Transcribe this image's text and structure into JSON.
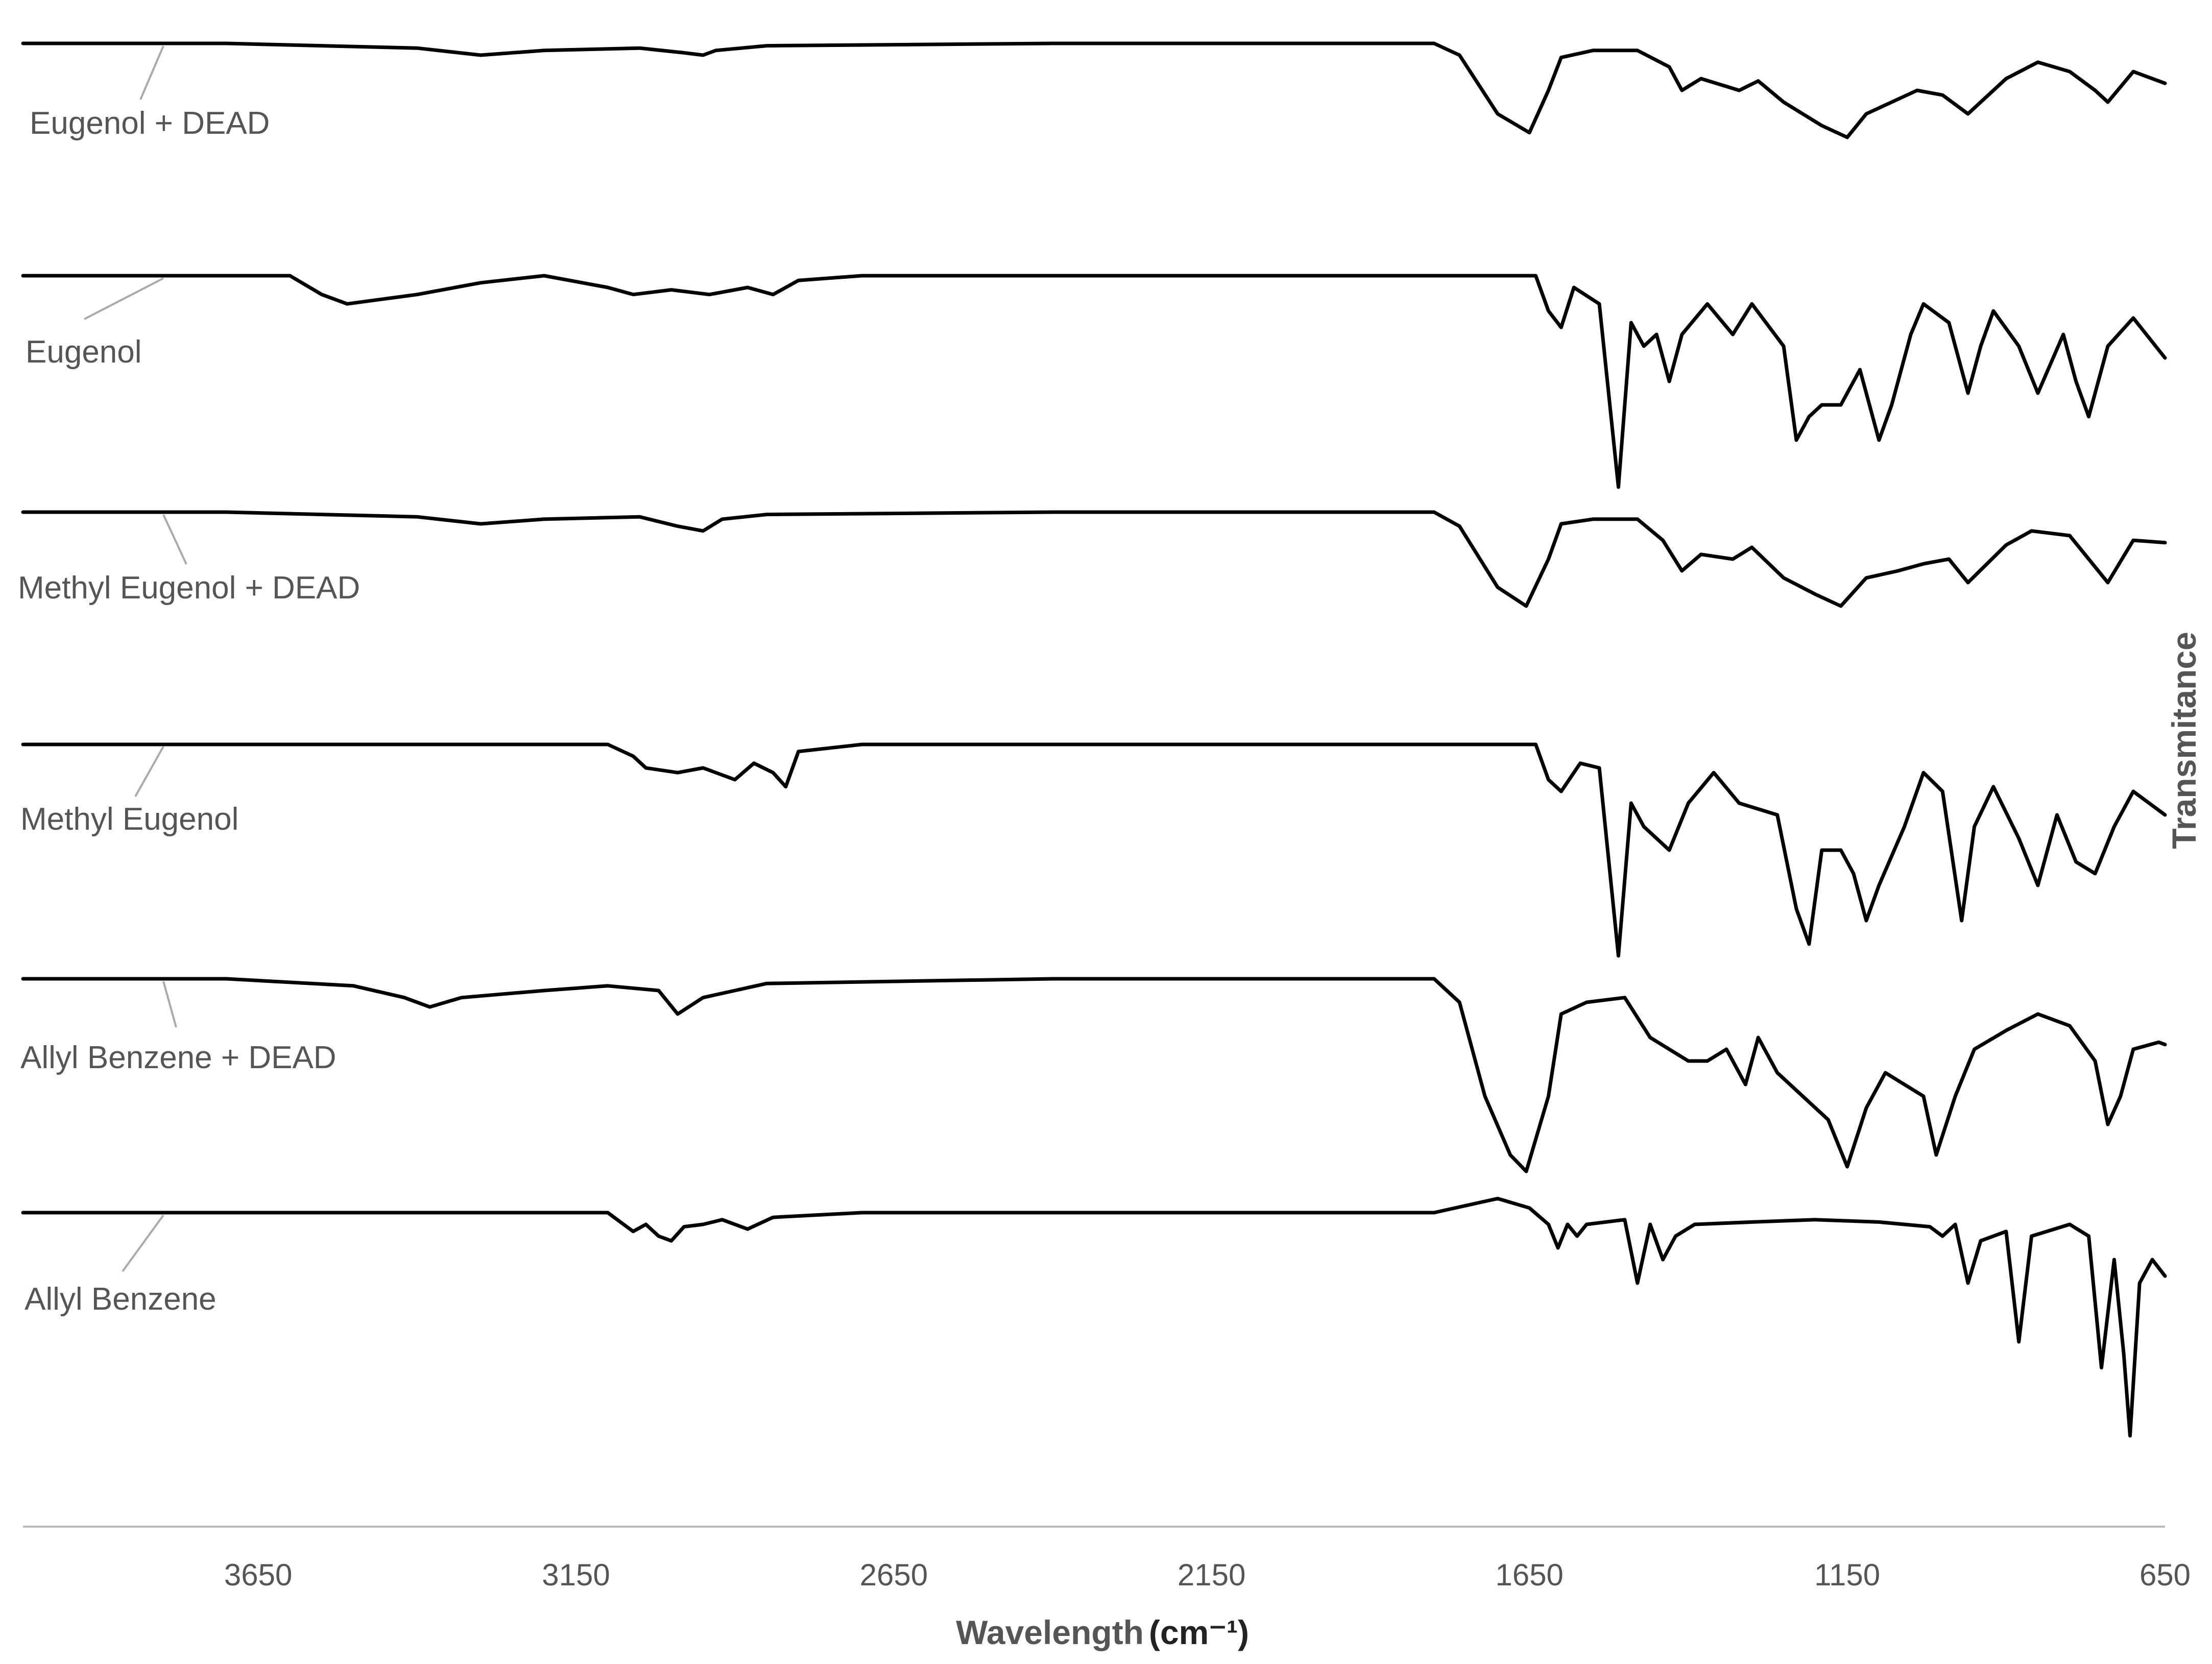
{
  "chart_data": {
    "type": "line",
    "title": "",
    "xlabel": "Wavelength",
    "xlabel_unit": "(cm⁻¹)",
    "ylabel": "Transmitance",
    "xlim": [
      4020,
      650
    ],
    "x_reversed": true,
    "grid": false,
    "legend": "none",
    "x_ticks": [
      {
        "value": 3650,
        "label": "3650"
      },
      {
        "value": 3150,
        "label": "3150"
      },
      {
        "value": 2650,
        "label": "2650"
      },
      {
        "value": 2150,
        "label": "2150"
      },
      {
        "value": 1650,
        "label": "1650"
      },
      {
        "value": 1150,
        "label": "1150"
      },
      {
        "value": 650,
        "label": "650"
      }
    ],
    "series": [
      {
        "name": "Eugenol + DEAD",
        "points": [
          [
            4020,
            0
          ],
          [
            3700,
            0
          ],
          [
            3400,
            -0.02
          ],
          [
            3300,
            -0.05
          ],
          [
            3200,
            -0.03
          ],
          [
            3050,
            -0.02
          ],
          [
            2980,
            -0.04
          ],
          [
            2950,
            -0.05
          ],
          [
            2930,
            -0.03
          ],
          [
            2850,
            -0.01
          ],
          [
            2400,
            0
          ],
          [
            1800,
            0
          ],
          [
            1760,
            -0.05
          ],
          [
            1700,
            -0.3
          ],
          [
            1650,
            -0.38
          ],
          [
            1620,
            -0.2
          ],
          [
            1600,
            -0.06
          ],
          [
            1550,
            -0.03
          ],
          [
            1480,
            -0.03
          ],
          [
            1430,
            -0.1
          ],
          [
            1410,
            -0.2
          ],
          [
            1380,
            -0.15
          ],
          [
            1320,
            -0.2
          ],
          [
            1290,
            -0.16
          ],
          [
            1250,
            -0.25
          ],
          [
            1190,
            -0.35
          ],
          [
            1150,
            -0.4
          ],
          [
            1120,
            -0.3
          ],
          [
            1080,
            -0.25
          ],
          [
            1040,
            -0.2
          ],
          [
            1000,
            -0.22
          ],
          [
            960,
            -0.3
          ],
          [
            900,
            -0.15
          ],
          [
            850,
            -0.08
          ],
          [
            800,
            -0.12
          ],
          [
            760,
            -0.2
          ],
          [
            740,
            -0.25
          ],
          [
            700,
            -0.12
          ],
          [
            650,
            -0.17
          ]
        ]
      },
      {
        "name": "Eugenol",
        "points": [
          [
            4020,
            0
          ],
          [
            3600,
            0
          ],
          [
            3550,
            -0.08
          ],
          [
            3510,
            -0.12
          ],
          [
            3400,
            -0.08
          ],
          [
            3300,
            -0.03
          ],
          [
            3200,
            0
          ],
          [
            3100,
            -0.05
          ],
          [
            3060,
            -0.08
          ],
          [
            3000,
            -0.06
          ],
          [
            2940,
            -0.08
          ],
          [
            2880,
            -0.05
          ],
          [
            2840,
            -0.08
          ],
          [
            2800,
            -0.02
          ],
          [
            2700,
            0
          ],
          [
            2000,
            0
          ],
          [
            1640,
            0
          ],
          [
            1620,
            -0.15
          ],
          [
            1600,
            -0.22
          ],
          [
            1580,
            -0.05
          ],
          [
            1540,
            -0.12
          ],
          [
            1510,
            -0.9
          ],
          [
            1490,
            -0.2
          ],
          [
            1470,
            -0.3
          ],
          [
            1450,
            -0.25
          ],
          [
            1430,
            -0.45
          ],
          [
            1410,
            -0.25
          ],
          [
            1370,
            -0.12
          ],
          [
            1330,
            -0.25
          ],
          [
            1300,
            -0.12
          ],
          [
            1250,
            -0.3
          ],
          [
            1230,
            -0.7
          ],
          [
            1210,
            -0.6
          ],
          [
            1190,
            -0.55
          ],
          [
            1160,
            -0.55
          ],
          [
            1130,
            -0.4
          ],
          [
            1100,
            -0.7
          ],
          [
            1080,
            -0.55
          ],
          [
            1050,
            -0.25
          ],
          [
            1030,
            -0.12
          ],
          [
            990,
            -0.2
          ],
          [
            960,
            -0.5
          ],
          [
            940,
            -0.3
          ],
          [
            920,
            -0.15
          ],
          [
            880,
            -0.3
          ],
          [
            850,
            -0.5
          ],
          [
            810,
            -0.25
          ],
          [
            790,
            -0.45
          ],
          [
            770,
            -0.6
          ],
          [
            740,
            -0.3
          ],
          [
            700,
            -0.18
          ],
          [
            650,
            -0.35
          ]
        ]
      },
      {
        "name": "Methyl Eugenol + DEAD",
        "points": [
          [
            4020,
            0
          ],
          [
            3700,
            0
          ],
          [
            3400,
            -0.02
          ],
          [
            3300,
            -0.05
          ],
          [
            3200,
            -0.03
          ],
          [
            3050,
            -0.02
          ],
          [
            2990,
            -0.06
          ],
          [
            2950,
            -0.08
          ],
          [
            2920,
            -0.03
          ],
          [
            2850,
            -0.01
          ],
          [
            2400,
            0
          ],
          [
            1800,
            0
          ],
          [
            1760,
            -0.06
          ],
          [
            1700,
            -0.32
          ],
          [
            1655,
            -0.4
          ],
          [
            1620,
            -0.2
          ],
          [
            1600,
            -0.05
          ],
          [
            1550,
            -0.03
          ],
          [
            1480,
            -0.03
          ],
          [
            1440,
            -0.12
          ],
          [
            1410,
            -0.25
          ],
          [
            1380,
            -0.18
          ],
          [
            1330,
            -0.2
          ],
          [
            1300,
            -0.15
          ],
          [
            1250,
            -0.28
          ],
          [
            1200,
            -0.35
          ],
          [
            1160,
            -0.4
          ],
          [
            1120,
            -0.28
          ],
          [
            1070,
            -0.25
          ],
          [
            1030,
            -0.22
          ],
          [
            990,
            -0.2
          ],
          [
            960,
            -0.3
          ],
          [
            900,
            -0.14
          ],
          [
            860,
            -0.08
          ],
          [
            800,
            -0.1
          ],
          [
            770,
            -0.2
          ],
          [
            740,
            -0.3
          ],
          [
            700,
            -0.12
          ],
          [
            650,
            -0.13
          ]
        ]
      },
      {
        "name": "Methyl Eugenol",
        "points": [
          [
            4020,
            0
          ],
          [
            3100,
            0
          ],
          [
            3060,
            -0.05
          ],
          [
            3040,
            -0.1
          ],
          [
            2990,
            -0.12
          ],
          [
            2950,
            -0.1
          ],
          [
            2900,
            -0.15
          ],
          [
            2870,
            -0.08
          ],
          [
            2840,
            -0.12
          ],
          [
            2820,
            -0.18
          ],
          [
            2800,
            -0.03
          ],
          [
            2700,
            0
          ],
          [
            2000,
            0
          ],
          [
            1640,
            0
          ],
          [
            1620,
            -0.15
          ],
          [
            1600,
            -0.2
          ],
          [
            1570,
            -0.08
          ],
          [
            1540,
            -0.1
          ],
          [
            1510,
            -0.9
          ],
          [
            1490,
            -0.25
          ],
          [
            1470,
            -0.35
          ],
          [
            1430,
            -0.45
          ],
          [
            1400,
            -0.25
          ],
          [
            1360,
            -0.12
          ],
          [
            1320,
            -0.25
          ],
          [
            1260,
            -0.3
          ],
          [
            1230,
            -0.7
          ],
          [
            1210,
            -0.85
          ],
          [
            1190,
            -0.45
          ],
          [
            1160,
            -0.45
          ],
          [
            1140,
            -0.55
          ],
          [
            1120,
            -0.75
          ],
          [
            1100,
            -0.6
          ],
          [
            1060,
            -0.35
          ],
          [
            1030,
            -0.12
          ],
          [
            1000,
            -0.2
          ],
          [
            970,
            -0.75
          ],
          [
            950,
            -0.35
          ],
          [
            920,
            -0.18
          ],
          [
            880,
            -0.4
          ],
          [
            850,
            -0.6
          ],
          [
            820,
            -0.3
          ],
          [
            790,
            -0.5
          ],
          [
            760,
            -0.55
          ],
          [
            730,
            -0.35
          ],
          [
            700,
            -0.2
          ],
          [
            650,
            -0.3
          ]
        ]
      },
      {
        "name": "Allyl Benzene + DEAD",
        "points": [
          [
            4020,
            0
          ],
          [
            3700,
            0
          ],
          [
            3500,
            -0.03
          ],
          [
            3420,
            -0.08
          ],
          [
            3380,
            -0.12
          ],
          [
            3330,
            -0.08
          ],
          [
            3200,
            -0.05
          ],
          [
            3100,
            -0.03
          ],
          [
            3020,
            -0.05
          ],
          [
            2990,
            -0.15
          ],
          [
            2950,
            -0.08
          ],
          [
            2900,
            -0.05
          ],
          [
            2850,
            -0.02
          ],
          [
            2400,
            0
          ],
          [
            1800,
            0
          ],
          [
            1760,
            -0.1
          ],
          [
            1720,
            -0.5
          ],
          [
            1680,
            -0.75
          ],
          [
            1655,
            -0.82
          ],
          [
            1620,
            -0.5
          ],
          [
            1600,
            -0.15
          ],
          [
            1560,
            -0.1
          ],
          [
            1500,
            -0.08
          ],
          [
            1460,
            -0.25
          ],
          [
            1430,
            -0.3
          ],
          [
            1400,
            -0.35
          ],
          [
            1370,
            -0.35
          ],
          [
            1340,
            -0.3
          ],
          [
            1310,
            -0.45
          ],
          [
            1290,
            -0.25
          ],
          [
            1260,
            -0.4
          ],
          [
            1220,
            -0.5
          ],
          [
            1180,
            -0.6
          ],
          [
            1150,
            -0.8
          ],
          [
            1120,
            -0.55
          ],
          [
            1090,
            -0.4
          ],
          [
            1060,
            -0.45
          ],
          [
            1030,
            -0.5
          ],
          [
            1010,
            -0.75
          ],
          [
            980,
            -0.5
          ],
          [
            950,
            -0.3
          ],
          [
            900,
            -0.22
          ],
          [
            850,
            -0.15
          ],
          [
            800,
            -0.2
          ],
          [
            760,
            -0.35
          ],
          [
            740,
            -0.62
          ],
          [
            720,
            -0.5
          ],
          [
            700,
            -0.3
          ],
          [
            660,
            -0.27
          ],
          [
            650,
            -0.28
          ]
        ]
      },
      {
        "name": "Allyl Benzene",
        "points": [
          [
            4020,
            0
          ],
          [
            3100,
            0
          ],
          [
            3080,
            -0.04
          ],
          [
            3060,
            -0.08
          ],
          [
            3040,
            -0.05
          ],
          [
            3020,
            -0.1
          ],
          [
            3000,
            -0.12
          ],
          [
            2980,
            -0.06
          ],
          [
            2950,
            -0.05
          ],
          [
            2920,
            -0.03
          ],
          [
            2880,
            -0.07
          ],
          [
            2840,
            -0.02
          ],
          [
            2700,
            0
          ],
          [
            1800,
            0
          ],
          [
            1700,
            0.06
          ],
          [
            1650,
            0.02
          ],
          [
            1620,
            -0.05
          ],
          [
            1605,
            -0.15
          ],
          [
            1590,
            -0.05
          ],
          [
            1575,
            -0.1
          ],
          [
            1560,
            -0.05
          ],
          [
            1500,
            -0.03
          ],
          [
            1480,
            -0.3
          ],
          [
            1460,
            -0.05
          ],
          [
            1440,
            -0.2
          ],
          [
            1420,
            -0.1
          ],
          [
            1390,
            -0.05
          ],
          [
            1300,
            -0.04
          ],
          [
            1200,
            -0.03
          ],
          [
            1100,
            -0.04
          ],
          [
            1020,
            -0.06
          ],
          [
            1000,
            -0.1
          ],
          [
            980,
            -0.05
          ],
          [
            960,
            -0.3
          ],
          [
            940,
            -0.12
          ],
          [
            900,
            -0.08
          ],
          [
            880,
            -0.55
          ],
          [
            860,
            -0.1
          ],
          [
            800,
            -0.05
          ],
          [
            770,
            -0.1
          ],
          [
            750,
            -0.66
          ],
          [
            730,
            -0.2
          ],
          [
            715,
            -0.6
          ],
          [
            705,
            -0.95
          ],
          [
            690,
            -0.3
          ],
          [
            670,
            -0.2
          ],
          [
            650,
            -0.27
          ]
        ]
      }
    ]
  }
}
